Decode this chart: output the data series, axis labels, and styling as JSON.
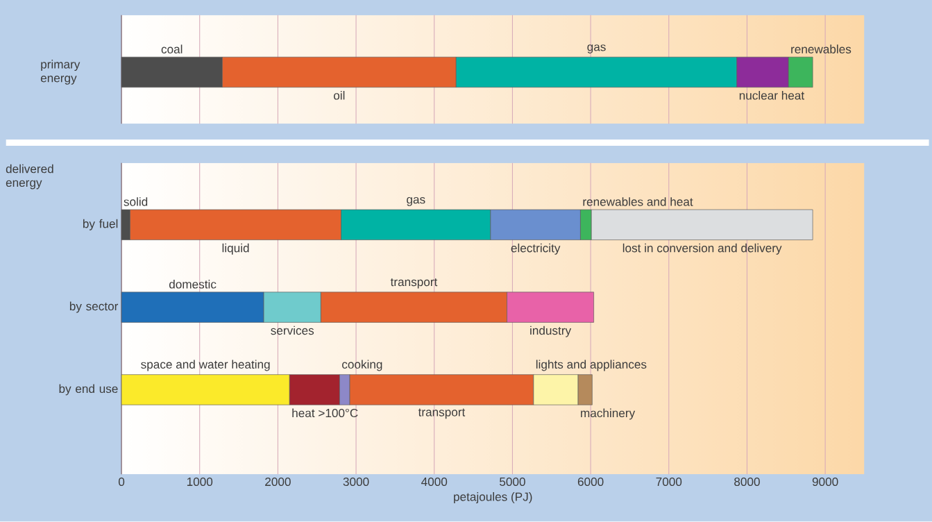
{
  "chart_data": [
    {
      "type": "bar",
      "orientation": "horizontal",
      "stacked": true,
      "categories": [
        "primary energy"
      ],
      "series": [
        {
          "name": "coal",
          "color": "#4d4d4d",
          "values": [
            1290
          ]
        },
        {
          "name": "oil",
          "color": "#e4622e",
          "values": [
            2990
          ]
        },
        {
          "name": "gas",
          "color": "#00b3a4",
          "values": [
            3590
          ]
        },
        {
          "name": "nuclear heat",
          "color": "#8d2c9a",
          "values": [
            660
          ]
        },
        {
          "name": "renewables",
          "color": "#3db55c",
          "values": [
            310
          ]
        }
      ],
      "xlim": [
        0,
        9500
      ],
      "xticks": [
        0,
        1000,
        2000,
        3000,
        4000,
        5000,
        6000,
        7000,
        8000,
        9000
      ],
      "grid": "x",
      "tick_labels": "y",
      "legend": false
    },
    {
      "type": "bar",
      "orientation": "horizontal",
      "stacked": true,
      "categories": [
        "by fuel",
        "by sector",
        "by end use"
      ],
      "series": [
        {
          "name": "solid",
          "color": "#4d4d4d",
          "values": [
            110,
            null,
            null
          ]
        },
        {
          "name": "liquid",
          "color": "#e4622e",
          "values": [
            2700,
            null,
            null
          ]
        },
        {
          "name": "gas",
          "color": "#00b3a4",
          "values": [
            1910,
            null,
            null
          ]
        },
        {
          "name": "electricity",
          "color": "#6a8fcf",
          "values": [
            1150,
            null,
            null
          ]
        },
        {
          "name": "renewables and heat",
          "color": "#3db55c",
          "values": [
            140,
            null,
            null
          ]
        },
        {
          "name": "lost in conversion and delivery",
          "color": "#dcdee0",
          "values": [
            2830,
            null,
            null
          ]
        },
        {
          "name": "domestic",
          "color": "#1f6fb8",
          "values": [
            null,
            1820,
            null
          ]
        },
        {
          "name": "services",
          "color": "#6fcbcc",
          "values": [
            null,
            730,
            null
          ]
        },
        {
          "name": "transport",
          "color": "#e4622e",
          "values": [
            null,
            2380,
            null
          ]
        },
        {
          "name": "industry",
          "color": "#e862a8",
          "values": [
            null,
            1110,
            null
          ]
        },
        {
          "name": "space and water heating",
          "color": "#fbea2a",
          "values": [
            null,
            null,
            2150
          ]
        },
        {
          "name": "heat >100°C",
          "color": "#a3232e",
          "values": [
            null,
            null,
            640
          ]
        },
        {
          "name": "cooking",
          "color": "#8d88c8",
          "values": [
            null,
            null,
            130
          ]
        },
        {
          "name": "transport",
          "color": "#e4622e",
          "values": [
            null,
            null,
            2350
          ]
        },
        {
          "name": "lights and appliances",
          "color": "#fdf4a8",
          "values": [
            null,
            null,
            570
          ]
        },
        {
          "name": "machinery",
          "color": "#b58a5c",
          "values": [
            null,
            null,
            180
          ]
        }
      ],
      "xlim": [
        0,
        9500
      ],
      "xticks": [
        0,
        1000,
        2000,
        3000,
        4000,
        5000,
        6000,
        7000,
        8000,
        9000
      ],
      "grid": "x",
      "legend": false,
      "xlabel": "petajoules (PJ)",
      "annotations": [
        "delivered energy"
      ]
    }
  ]
}
